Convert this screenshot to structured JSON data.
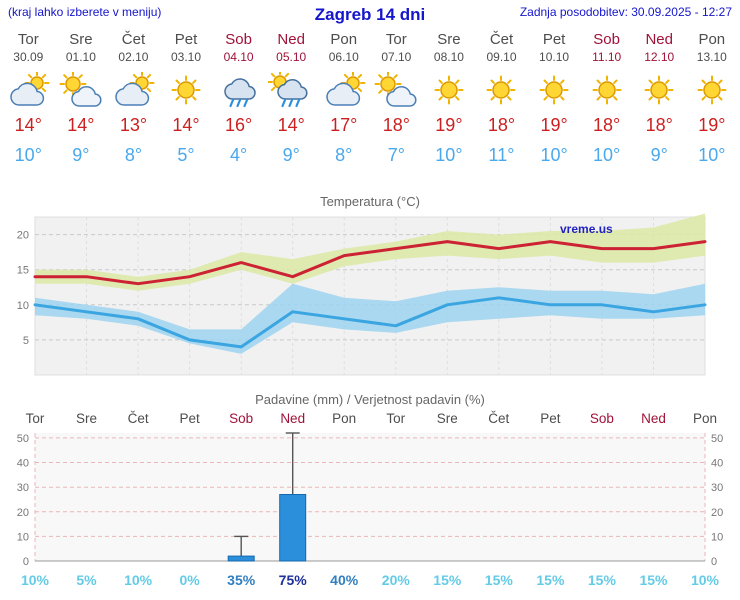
{
  "header": {
    "note": "(kraj lahko izberete v meniju)",
    "title": "Zagreb 14 dni",
    "updated": "Zadnja posodobitev: 30.09.2025 - 12:27"
  },
  "colors": {
    "accent_blue": "#1515cc",
    "day_weekday": "#4d4d4d",
    "day_weekend": "#a01238",
    "tmax_text": "#cc2020",
    "tmin_text": "#4aa8ec",
    "chart_title": "#666666",
    "plot_bg": "#f1f1f1",
    "grid_gray": "#c9c9c9",
    "grid_pink": "#eab6b6",
    "bar_fill": "#2b8fdc",
    "bar_stroke": "#1668ad",
    "percent_low": "#63cbe6",
    "percent_mid": "#2f7fc1",
    "percent_high": "#1c2f9b",
    "watermark_blue": "#2121bb"
  },
  "days": [
    {
      "name": "Tor",
      "date": "30.09",
      "weekend": false,
      "icon": "mostly-cloudy",
      "tmax": 14,
      "tmin": 10
    },
    {
      "name": "Sre",
      "date": "01.10",
      "weekend": false,
      "icon": "partly-cloudy",
      "tmax": 14,
      "tmin": 9
    },
    {
      "name": "Čet",
      "date": "02.10",
      "weekend": false,
      "icon": "mostly-cloudy",
      "tmax": 13,
      "tmin": 8
    },
    {
      "name": "Pet",
      "date": "03.10",
      "weekend": false,
      "icon": "sunny",
      "tmax": 14,
      "tmin": 5
    },
    {
      "name": "Sob",
      "date": "04.10",
      "weekend": true,
      "icon": "rain",
      "tmax": 16,
      "tmin": 4
    },
    {
      "name": "Ned",
      "date": "05.10",
      "weekend": true,
      "icon": "rain-sun",
      "tmax": 14,
      "tmin": 9
    },
    {
      "name": "Pon",
      "date": "06.10",
      "weekend": false,
      "icon": "mostly-cloudy",
      "tmax": 17,
      "tmin": 8
    },
    {
      "name": "Tor",
      "date": "07.10",
      "weekend": false,
      "icon": "partly-cloudy",
      "tmax": 18,
      "tmin": 7
    },
    {
      "name": "Sre",
      "date": "08.10",
      "weekend": false,
      "icon": "sunny",
      "tmax": 19,
      "tmin": 10
    },
    {
      "name": "Čet",
      "date": "09.10",
      "weekend": false,
      "icon": "sunny",
      "tmax": 18,
      "tmin": 11
    },
    {
      "name": "Pet",
      "date": "10.10",
      "weekend": false,
      "icon": "sunny",
      "tmax": 19,
      "tmin": 10
    },
    {
      "name": "Sob",
      "date": "11.10",
      "weekend": true,
      "icon": "sunny",
      "tmax": 18,
      "tmin": 10
    },
    {
      "name": "Ned",
      "date": "12.10",
      "weekend": true,
      "icon": "sunny",
      "tmax": 18,
      "tmin": 9
    },
    {
      "name": "Pon",
      "date": "13.10",
      "weekend": false,
      "icon": "sunny",
      "tmax": 19,
      "tmin": 10
    }
  ],
  "chart_data": [
    {
      "type": "line",
      "title": "Temperatura (°C)",
      "watermark": "vreme.us",
      "x_labels": [
        "Tor",
        "Sre",
        "Čet",
        "Pet",
        "Sob",
        "Ned",
        "Pon",
        "Tor",
        "Sre",
        "Čet",
        "Pet",
        "Sob",
        "Ned",
        "Pon"
      ],
      "ylim": [
        0,
        22.5
      ],
      "yticks": [
        5,
        10,
        15,
        20
      ],
      "grid": true,
      "series": [
        {
          "name": "max-temperature",
          "color": "#cc2233",
          "values": [
            14,
            14,
            13,
            14,
            16,
            14,
            17,
            18,
            19,
            18,
            19,
            18,
            18,
            19
          ]
        },
        {
          "name": "min-temperature",
          "color": "#3aa5e0",
          "values": [
            10,
            9,
            8,
            5,
            4,
            9,
            8,
            7,
            10,
            11,
            10,
            10,
            9,
            10
          ]
        }
      ],
      "bands": [
        {
          "name": "max-temperature-range",
          "color": "#dce9a4",
          "upper": [
            15,
            15,
            14,
            15,
            17.5,
            16.5,
            18,
            19,
            20.5,
            20,
            20.5,
            20.5,
            21,
            23
          ],
          "lower": [
            13,
            13,
            12,
            13,
            15,
            13,
            15.5,
            16.5,
            17,
            16.5,
            17,
            16,
            16,
            17
          ]
        },
        {
          "name": "min-temperature-range",
          "color": "#9cd3f0",
          "upper": [
            11,
            10,
            9,
            6.5,
            6.5,
            13,
            11,
            10.5,
            12,
            12.5,
            12,
            12,
            11.5,
            13
          ],
          "lower": [
            8.5,
            8,
            7,
            4.5,
            3,
            7.5,
            6.5,
            6,
            7.5,
            8,
            8.5,
            8,
            8,
            8.5
          ]
        }
      ]
    },
    {
      "type": "bar",
      "title": "Padavine (mm) / Verjetnost padavin (%)",
      "categories": [
        "Tor",
        "Sre",
        "Čet",
        "Pet",
        "Sob",
        "Ned",
        "Pon",
        "Tor",
        "Sre",
        "Čet",
        "Pet",
        "Sob",
        "Ned",
        "Pon"
      ],
      "weekend_categories": [
        "Sob",
        "Ned"
      ],
      "values": [
        0,
        0,
        0,
        0,
        2,
        27,
        0,
        0,
        0,
        0,
        0,
        0,
        0,
        0
      ],
      "whisker_max": [
        0,
        0,
        0,
        0,
        10,
        52,
        0,
        0,
        0,
        0,
        0,
        0,
        0,
        0
      ],
      "probabilities": [
        10,
        5,
        10,
        0,
        35,
        75,
        40,
        20,
        15,
        15,
        15,
        15,
        15,
        10
      ],
      "ylim": [
        0,
        52
      ],
      "yticks": [
        0,
        10,
        20,
        30,
        40,
        50
      ],
      "grid": true
    }
  ]
}
